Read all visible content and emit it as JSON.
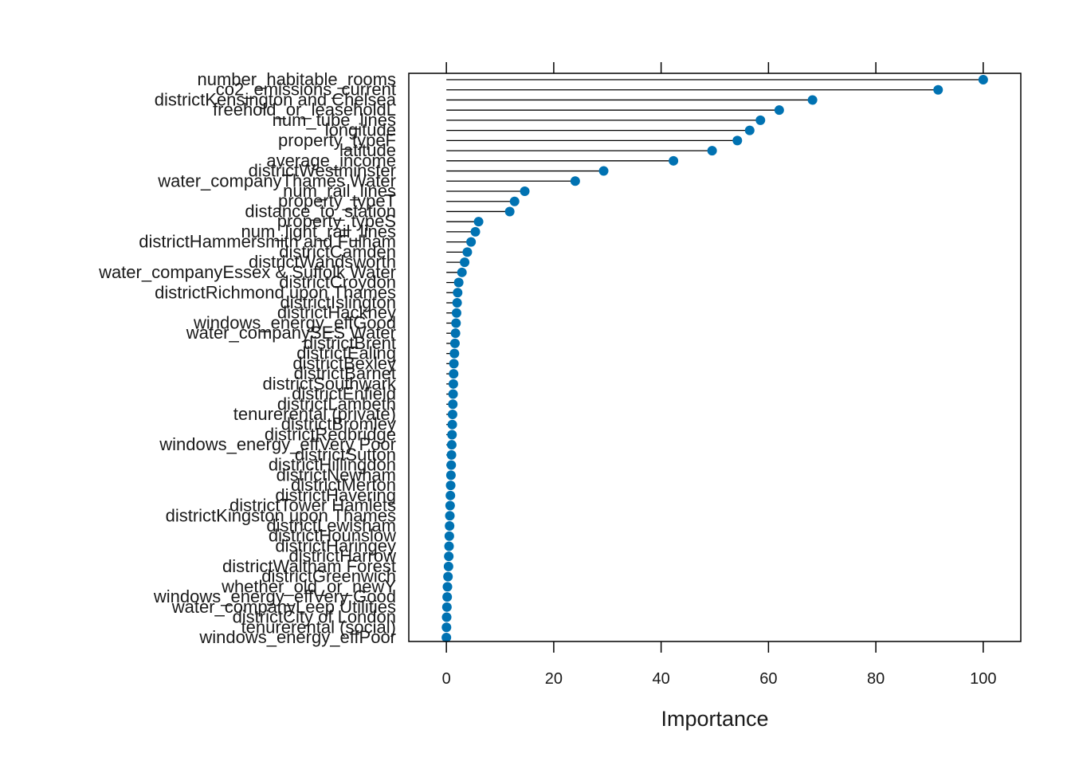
{
  "chart_data": {
    "type": "dot",
    "xlabel": "Importance",
    "xlim": [
      -7,
      107
    ],
    "xticks": [
      0,
      20,
      40,
      60,
      80,
      100
    ],
    "grid": false,
    "point_color": "#0072b2",
    "items": [
      {
        "name": "number_habitable_rooms",
        "value": 100
      },
      {
        "name": "co2_emissions_current",
        "value": 91.6
      },
      {
        "name": "districtKensington and Chelsea",
        "value": 68.2
      },
      {
        "name": "freehold_or_leaseholdL",
        "value": 62.0
      },
      {
        "name": "num_tube_lines",
        "value": 58.5
      },
      {
        "name": "longitude",
        "value": 56.5
      },
      {
        "name": "property_typeF",
        "value": 54.2
      },
      {
        "name": "latitude",
        "value": 49.5
      },
      {
        "name": "average_income",
        "value": 42.3
      },
      {
        "name": "districtWestminster",
        "value": 29.3
      },
      {
        "name": "water_companyThames Water",
        "value": 24.0
      },
      {
        "name": "num_rail_lines",
        "value": 14.6
      },
      {
        "name": "property_typeT",
        "value": 12.7
      },
      {
        "name": "distance_to_station",
        "value": 11.8
      },
      {
        "name": "property_typeS",
        "value": 6.0
      },
      {
        "name": "num_light_rail_lines",
        "value": 5.4
      },
      {
        "name": "districtHammersmith and Fulham",
        "value": 4.6
      },
      {
        "name": "districtCamden",
        "value": 3.9
      },
      {
        "name": "districtWandsworth",
        "value": 3.4
      },
      {
        "name": "water_companyEssex & Suffolk Water",
        "value": 2.9
      },
      {
        "name": "districtCroydon",
        "value": 2.3
      },
      {
        "name": "districtRichmond upon Thames",
        "value": 2.1
      },
      {
        "name": "districtIslington",
        "value": 2.0
      },
      {
        "name": "districtHackney",
        "value": 1.9
      },
      {
        "name": "windows_energy_effGood",
        "value": 1.8
      },
      {
        "name": "water_companySES Water",
        "value": 1.7
      },
      {
        "name": "districtBrent",
        "value": 1.6
      },
      {
        "name": "districtEaling",
        "value": 1.5
      },
      {
        "name": "districtBexley",
        "value": 1.4
      },
      {
        "name": "districtBarnet",
        "value": 1.35
      },
      {
        "name": "districtSouthwark",
        "value": 1.3
      },
      {
        "name": "districtEnfield",
        "value": 1.25
      },
      {
        "name": "districtLambeth",
        "value": 1.2
      },
      {
        "name": "tenurerental (private)",
        "value": 1.15
      },
      {
        "name": "districtBromley",
        "value": 1.1
      },
      {
        "name": "districtRedbridge",
        "value": 1.05
      },
      {
        "name": "windows_energy_effVery Poor",
        "value": 1.0
      },
      {
        "name": "districtSutton",
        "value": 0.95
      },
      {
        "name": "districtHillingdon",
        "value": 0.9
      },
      {
        "name": "districtNewham",
        "value": 0.85
      },
      {
        "name": "districtMerton",
        "value": 0.8
      },
      {
        "name": "districtHavering",
        "value": 0.75
      },
      {
        "name": "districtTower Hamlets",
        "value": 0.7
      },
      {
        "name": "districtKingston upon Thames",
        "value": 0.65
      },
      {
        "name": "districtLewisham",
        "value": 0.6
      },
      {
        "name": "districtHounslow",
        "value": 0.55
      },
      {
        "name": "districtHaringey",
        "value": 0.5
      },
      {
        "name": "districtHarrow",
        "value": 0.45
      },
      {
        "name": "districtWaltham Forest",
        "value": 0.4
      },
      {
        "name": "districtGreenwich",
        "value": 0.3
      },
      {
        "name": "whether_old_or_newY",
        "value": 0.2
      },
      {
        "name": "windows_energy_effVery Good",
        "value": 0.15
      },
      {
        "name": "water_companyLeep Utilities",
        "value": 0.1
      },
      {
        "name": "districtCity of London",
        "value": 0.05
      },
      {
        "name": "tenurerental (social)",
        "value": 0.02
      },
      {
        "name": "windows_energy_effPoor",
        "value": 0
      }
    ]
  }
}
